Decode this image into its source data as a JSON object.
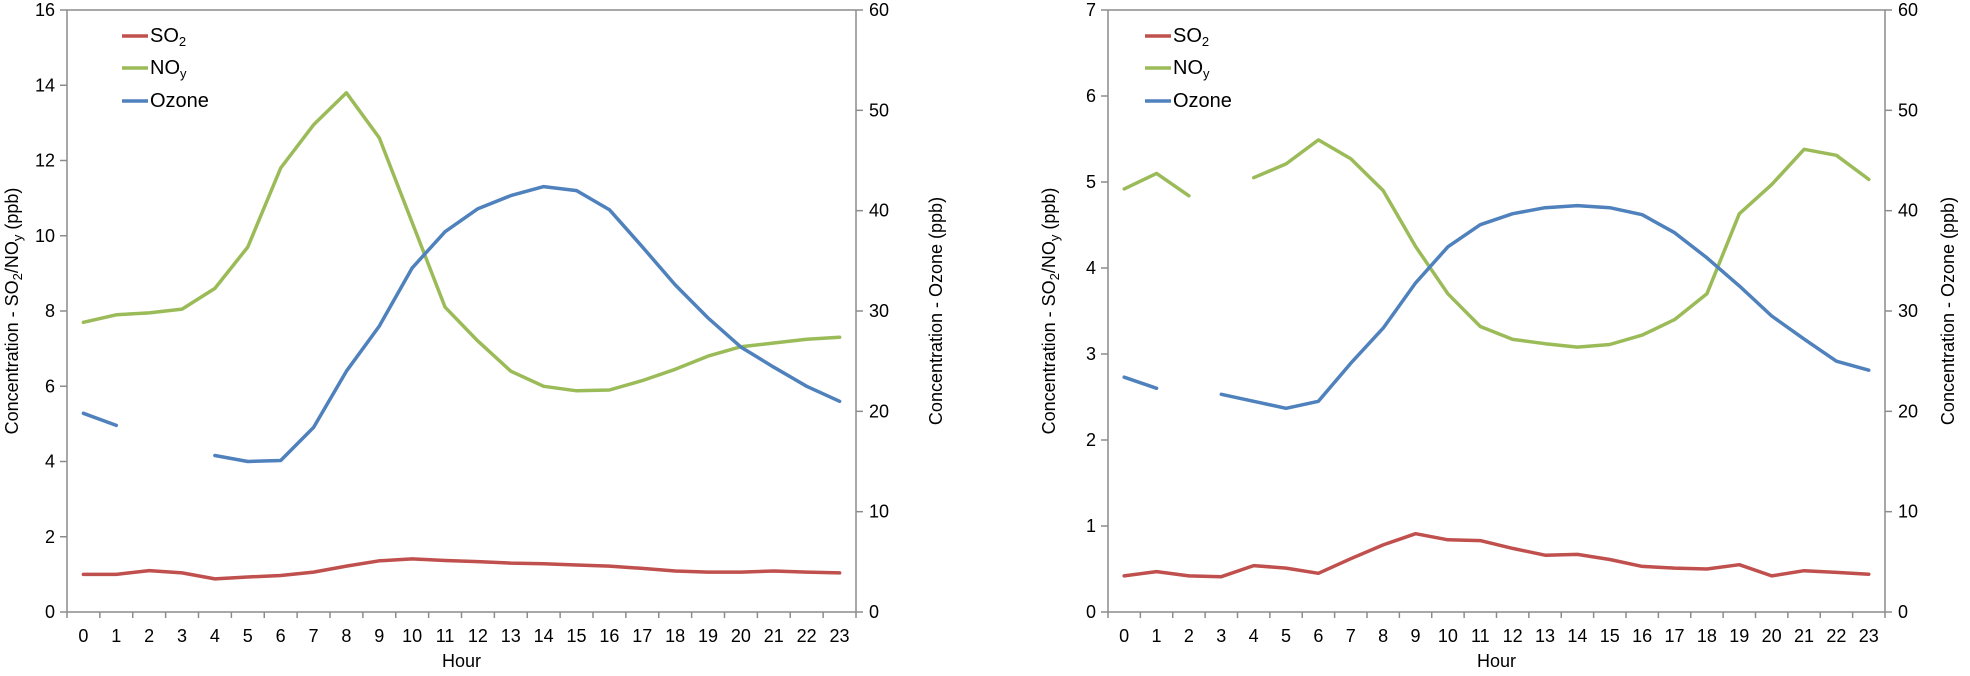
{
  "chart_data": [
    {
      "type": "line",
      "position": "left",
      "x_axis": {
        "title": "Hour",
        "categories": [
          "0",
          "1",
          "2",
          "3",
          "4",
          "5",
          "6",
          "7",
          "8",
          "9",
          "10",
          "11",
          "12",
          "13",
          "14",
          "15",
          "16",
          "17",
          "18",
          "19",
          "20",
          "21",
          "22",
          "23"
        ]
      },
      "y_left": {
        "title_parts": [
          {
            "t": "Concentration - SO"
          },
          {
            "t": "2",
            "sub": true
          },
          {
            "t": "/NO"
          },
          {
            "t": "y",
            "sub": true
          },
          {
            "t": " (ppb)"
          }
        ],
        "min": 0,
        "max": 16,
        "step": 2,
        "labels": [
          "0",
          "2",
          "4",
          "6",
          "8",
          "10",
          "12",
          "14",
          "16"
        ]
      },
      "y_right": {
        "title_parts": [
          {
            "t": "Concentration - Ozone (ppb)"
          }
        ],
        "min": 0,
        "max": 60,
        "step": 10,
        "labels": [
          "0",
          "10",
          "20",
          "30",
          "40",
          "50",
          "60"
        ]
      },
      "legend": [
        {
          "parts": [
            {
              "t": "SO"
            },
            {
              "t": "2",
              "sub": true
            }
          ]
        },
        {
          "parts": [
            {
              "t": "NO"
            },
            {
              "t": "y",
              "sub": true
            }
          ]
        },
        {
          "parts": [
            {
              "t": "Ozone"
            }
          ]
        }
      ],
      "grid": false,
      "series": [
        {
          "name": "SO2",
          "axis": "left",
          "color": "#C0504D",
          "values": [
            1.0,
            1.0,
            1.1,
            1.04,
            0.88,
            0.93,
            0.97,
            1.06,
            1.22,
            1.36,
            1.41,
            1.37,
            1.34,
            1.3,
            1.28,
            1.25,
            1.22,
            1.16,
            1.09,
            1.06,
            1.06,
            1.09,
            1.06,
            1.04
          ]
        },
        {
          "name": "NOy",
          "axis": "left",
          "color": "#9BBB59",
          "values": [
            7.7,
            7.9,
            7.95,
            8.05,
            8.6,
            9.7,
            11.8,
            12.95,
            13.8,
            12.6,
            10.35,
            8.1,
            7.2,
            6.4,
            6.0,
            5.88,
            5.9,
            6.15,
            6.45,
            6.8,
            7.05,
            7.15,
            7.25,
            7.3
          ]
        },
        {
          "name": "Ozone",
          "axis": "right",
          "color": "#4F81BD",
          "values": [
            19.8,
            18.6,
            null,
            null,
            15.6,
            15.0,
            15.1,
            18.4,
            24.0,
            28.5,
            34.3,
            37.9,
            40.2,
            41.5,
            42.4,
            42.0,
            40.1,
            36.4,
            32.6,
            29.3,
            26.4,
            24.4,
            22.5,
            21.0
          ]
        }
      ]
    },
    {
      "type": "line",
      "position": "right",
      "x_axis": {
        "title": "Hour",
        "categories": [
          "0",
          "1",
          "2",
          "3",
          "4",
          "5",
          "6",
          "7",
          "8",
          "9",
          "10",
          "11",
          "12",
          "13",
          "14",
          "15",
          "16",
          "17",
          "18",
          "19",
          "20",
          "21",
          "22",
          "23"
        ]
      },
      "y_left": {
        "title_parts": [
          {
            "t": "Concentration - SO"
          },
          {
            "t": "2",
            "sub": true
          },
          {
            "t": "/NO"
          },
          {
            "t": "y",
            "sub": true
          },
          {
            "t": " (ppb)"
          }
        ],
        "min": 0,
        "max": 7,
        "step": 1,
        "labels": [
          "0",
          "1",
          "2",
          "3",
          "4",
          "5",
          "6",
          "7"
        ]
      },
      "y_right": {
        "title_parts": [
          {
            "t": "Concentration - Ozone (ppb)"
          }
        ],
        "min": 0,
        "max": 60,
        "step": 10,
        "labels": [
          "0",
          "10",
          "20",
          "30",
          "40",
          "50",
          "60"
        ]
      },
      "legend": [
        {
          "parts": [
            {
              "t": "SO"
            },
            {
              "t": "2",
              "sub": true
            }
          ]
        },
        {
          "parts": [
            {
              "t": "NO"
            },
            {
              "t": "y",
              "sub": true
            }
          ]
        },
        {
          "parts": [
            {
              "t": "Ozone"
            }
          ]
        }
      ],
      "grid": false,
      "series": [
        {
          "name": "SO2",
          "axis": "left",
          "color": "#C0504D",
          "values": [
            0.42,
            0.47,
            0.42,
            0.41,
            0.54,
            0.51,
            0.45,
            0.62,
            0.78,
            0.91,
            0.84,
            0.83,
            0.74,
            0.66,
            0.67,
            0.61,
            0.53,
            0.51,
            0.5,
            0.55,
            0.42,
            0.48,
            0.46,
            0.44
          ]
        },
        {
          "name": "NOy",
          "axis": "left",
          "color": "#9BBB59",
          "values": [
            4.92,
            5.1,
            4.84,
            null,
            5.05,
            5.21,
            5.49,
            5.27,
            4.9,
            4.25,
            3.7,
            3.32,
            3.17,
            3.12,
            3.08,
            3.11,
            3.22,
            3.4,
            3.7,
            4.63,
            4.97,
            5.38,
            5.31,
            5.03
          ]
        },
        {
          "name": "Ozone",
          "axis": "right",
          "color": "#4F81BD",
          "values": [
            23.4,
            22.3,
            null,
            21.7,
            21.0,
            20.3,
            21.0,
            24.8,
            28.3,
            32.8,
            36.4,
            38.6,
            39.7,
            40.3,
            40.5,
            40.3,
            39.6,
            37.8,
            35.3,
            32.5,
            29.5,
            27.2,
            25.0,
            24.1
          ]
        }
      ]
    }
  ]
}
